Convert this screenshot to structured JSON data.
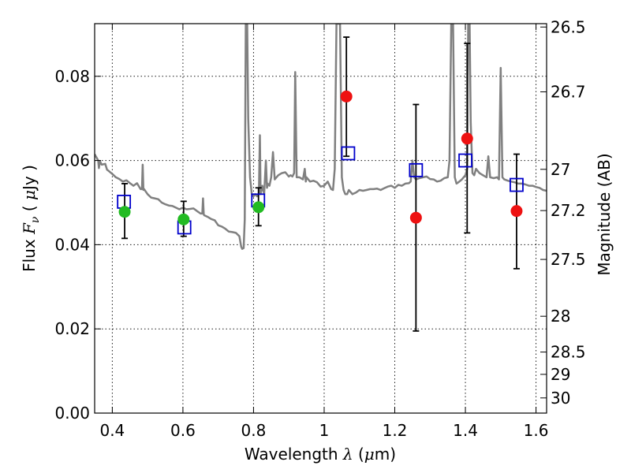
{
  "chart_data": {
    "type": "scatter",
    "xlabel": {
      "prefix": "Wavelength ",
      "symbol": "λ",
      "mid": " (",
      "mu": "μ",
      "suffix": "m)"
    },
    "ylabel": {
      "prefix": "Flux ",
      "symbol": "F",
      "sub": "ν",
      "mid": " ( ",
      "mu": "μ",
      "suffix": "Jy )"
    },
    "y2label": "Magnitude (AB)",
    "xlim": [
      0.35,
      1.63
    ],
    "ylim": [
      0.0,
      0.0925
    ],
    "x_ticks": [
      0.4,
      0.6,
      0.8,
      1.0,
      1.2,
      1.4,
      1.6
    ],
    "x_tick_labels": [
      "0.4",
      "0.6",
      "0.8",
      "1",
      "1.2",
      "1.4",
      "1.6"
    ],
    "y_ticks": [
      0.0,
      0.02,
      0.04,
      0.06,
      0.08
    ],
    "y_tick_labels": [
      "0.00",
      "0.02",
      "0.04",
      "0.06",
      "0.08"
    ],
    "y2_ticks": [
      {
        "label": "26.5",
        "flux": 0.0917
      },
      {
        "label": "26.7",
        "flux": 0.0763
      },
      {
        "label": "27",
        "flux": 0.0579
      },
      {
        "label": "27.2",
        "flux": 0.0481
      },
      {
        "label": "27.5",
        "flux": 0.0365
      },
      {
        "label": "28",
        "flux": 0.023
      },
      {
        "label": "28.5",
        "flux": 0.0145
      },
      {
        "label": "29",
        "flux": 0.0092
      },
      {
        "label": "30",
        "flux": 0.0036
      }
    ],
    "grid": true,
    "colors": {
      "spectrum": "#808080",
      "model": "#0000cc",
      "green": "#22bb22",
      "red": "#ee1111",
      "errorbar": "#000000"
    },
    "series": [
      {
        "kind": "line",
        "points": [
          [
            0.35,
            0.0615
          ],
          [
            0.36,
            0.06
          ],
          [
            0.362,
            0.0582
          ],
          [
            0.365,
            0.0598
          ],
          [
            0.37,
            0.059
          ],
          [
            0.38,
            0.0592
          ],
          [
            0.385,
            0.0578
          ],
          [
            0.39,
            0.0575
          ],
          [
            0.4,
            0.0568
          ],
          [
            0.41,
            0.056
          ],
          [
            0.42,
            0.0556
          ],
          [
            0.43,
            0.055
          ],
          [
            0.44,
            0.0553
          ],
          [
            0.45,
            0.0546
          ],
          [
            0.46,
            0.054
          ],
          [
            0.47,
            0.0546
          ],
          [
            0.48,
            0.0532
          ],
          [
            0.484,
            0.0532
          ],
          [
            0.486,
            0.059
          ],
          [
            0.488,
            0.053
          ],
          [
            0.49,
            0.0532
          ],
          [
            0.5,
            0.052
          ],
          [
            0.51,
            0.0512
          ],
          [
            0.52,
            0.051
          ],
          [
            0.53,
            0.0508
          ],
          [
            0.54,
            0.05
          ],
          [
            0.55,
            0.0496
          ],
          [
            0.56,
            0.0493
          ],
          [
            0.57,
            0.0492
          ],
          [
            0.58,
            0.0488
          ],
          [
            0.59,
            0.0484
          ],
          [
            0.6,
            0.0488
          ],
          [
            0.61,
            0.0484
          ],
          [
            0.62,
            0.0485
          ],
          [
            0.63,
            0.0486
          ],
          [
            0.64,
            0.048
          ],
          [
            0.65,
            0.0474
          ],
          [
            0.655,
            0.0474
          ],
          [
            0.657,
            0.051
          ],
          [
            0.659,
            0.0472
          ],
          [
            0.66,
            0.047
          ],
          [
            0.67,
            0.0466
          ],
          [
            0.68,
            0.0461
          ],
          [
            0.69,
            0.0458
          ],
          [
            0.7,
            0.0446
          ],
          [
            0.71,
            0.0443
          ],
          [
            0.72,
            0.0438
          ],
          [
            0.73,
            0.0431
          ],
          [
            0.74,
            0.043
          ],
          [
            0.75,
            0.0428
          ],
          [
            0.76,
            0.042
          ],
          [
            0.765,
            0.0395
          ],
          [
            0.768,
            0.039
          ],
          [
            0.772,
            0.0392
          ],
          [
            0.775,
            0.046
          ],
          [
            0.778,
            0.0925
          ],
          [
            0.782,
            0.0925
          ],
          [
            0.785,
            0.07
          ],
          [
            0.79,
            0.056
          ],
          [
            0.795,
            0.052
          ],
          [
            0.8,
            0.0515
          ],
          [
            0.805,
            0.052
          ],
          [
            0.81,
            0.0515
          ],
          [
            0.815,
            0.052
          ],
          [
            0.818,
            0.066
          ],
          [
            0.82,
            0.052
          ],
          [
            0.825,
            0.054
          ],
          [
            0.83,
            0.052
          ],
          [
            0.835,
            0.06
          ],
          [
            0.838,
            0.0535
          ],
          [
            0.84,
            0.0545
          ],
          [
            0.845,
            0.054
          ],
          [
            0.85,
            0.056
          ],
          [
            0.855,
            0.062
          ],
          [
            0.86,
            0.0555
          ],
          [
            0.865,
            0.056
          ],
          [
            0.87,
            0.0565
          ],
          [
            0.88,
            0.057
          ],
          [
            0.89,
            0.0572
          ],
          [
            0.9,
            0.0562
          ],
          [
            0.905,
            0.0565
          ],
          [
            0.91,
            0.0562
          ],
          [
            0.915,
            0.057
          ],
          [
            0.918,
            0.081
          ],
          [
            0.922,
            0.056
          ],
          [
            0.93,
            0.056
          ],
          [
            0.94,
            0.0555
          ],
          [
            0.945,
            0.058
          ],
          [
            0.948,
            0.055
          ],
          [
            0.95,
            0.056
          ],
          [
            0.96,
            0.055
          ],
          [
            0.97,
            0.0552
          ],
          [
            0.98,
            0.0548
          ],
          [
            0.99,
            0.0538
          ],
          [
            1.0,
            0.054
          ],
          [
            1.01,
            0.055
          ],
          [
            1.02,
            0.0532
          ],
          [
            1.025,
            0.053
          ],
          [
            1.03,
            0.058
          ],
          [
            1.035,
            0.0925
          ],
          [
            1.045,
            0.0925
          ],
          [
            1.05,
            0.056
          ],
          [
            1.055,
            0.053
          ],
          [
            1.06,
            0.052
          ],
          [
            1.065,
            0.052
          ],
          [
            1.07,
            0.053
          ],
          [
            1.08,
            0.052
          ],
          [
            1.09,
            0.0524
          ],
          [
            1.1,
            0.053
          ],
          [
            1.11,
            0.0528
          ],
          [
            1.12,
            0.053
          ],
          [
            1.13,
            0.0532
          ],
          [
            1.14,
            0.0532
          ],
          [
            1.15,
            0.0533
          ],
          [
            1.16,
            0.053
          ],
          [
            1.17,
            0.0534
          ],
          [
            1.18,
            0.0538
          ],
          [
            1.19,
            0.054
          ],
          [
            1.2,
            0.0535
          ],
          [
            1.21,
            0.0542
          ],
          [
            1.22,
            0.054
          ],
          [
            1.23,
            0.0545
          ],
          [
            1.24,
            0.0546
          ],
          [
            1.245,
            0.055
          ],
          [
            1.25,
            0.06
          ],
          [
            1.255,
            0.056
          ],
          [
            1.26,
            0.0555
          ],
          [
            1.27,
            0.0558
          ],
          [
            1.28,
            0.056
          ],
          [
            1.29,
            0.0562
          ],
          [
            1.3,
            0.0556
          ],
          [
            1.31,
            0.0555
          ],
          [
            1.32,
            0.055
          ],
          [
            1.33,
            0.0552
          ],
          [
            1.34,
            0.0558
          ],
          [
            1.35,
            0.056
          ],
          [
            1.355,
            0.06
          ],
          [
            1.36,
            0.0925
          ],
          [
            1.365,
            0.0925
          ],
          [
            1.37,
            0.056
          ],
          [
            1.375,
            0.0545
          ],
          [
            1.38,
            0.0548
          ],
          [
            1.39,
            0.0555
          ],
          [
            1.4,
            0.0565
          ],
          [
            1.405,
            0.058
          ],
          [
            1.408,
            0.0925
          ],
          [
            1.412,
            0.0925
          ],
          [
            1.415,
            0.069
          ],
          [
            1.42,
            0.057
          ],
          [
            1.425,
            0.0565
          ],
          [
            1.43,
            0.058
          ],
          [
            1.435,
            0.0575
          ],
          [
            1.44,
            0.057
          ],
          [
            1.45,
            0.0565
          ],
          [
            1.46,
            0.056
          ],
          [
            1.465,
            0.061
          ],
          [
            1.47,
            0.056
          ],
          [
            1.48,
            0.0558
          ],
          [
            1.49,
            0.056
          ],
          [
            1.495,
            0.0555
          ],
          [
            1.5,
            0.082
          ],
          [
            1.505,
            0.056
          ],
          [
            1.51,
            0.0555
          ],
          [
            1.52,
            0.0552
          ],
          [
            1.53,
            0.055
          ],
          [
            1.54,
            0.0548
          ],
          [
            1.55,
            0.0545
          ],
          [
            1.56,
            0.0545
          ],
          [
            1.57,
            0.0543
          ],
          [
            1.58,
            0.054
          ],
          [
            1.59,
            0.054
          ],
          [
            1.6,
            0.0537
          ],
          [
            1.61,
            0.0535
          ],
          [
            1.62,
            0.053
          ],
          [
            1.63,
            0.0528
          ]
        ]
      },
      {
        "kind": "open-square",
        "points": [
          [
            0.433,
            0.0502
          ],
          [
            0.604,
            0.0441
          ],
          [
            0.813,
            0.0505
          ],
          [
            1.068,
            0.0617
          ],
          [
            1.26,
            0.0577
          ],
          [
            1.4,
            0.06
          ],
          [
            1.545,
            0.0542
          ]
        ]
      },
      {
        "kind": "filled-circle",
        "color": "green",
        "points": [
          [
            0.435,
            0.0478
          ],
          [
            0.602,
            0.046
          ],
          [
            0.814,
            0.0489
          ]
        ]
      },
      {
        "kind": "filled-circle",
        "color": "red",
        "points": [
          [
            1.063,
            0.0752
          ],
          [
            1.26,
            0.0464
          ],
          [
            1.405,
            0.0652
          ],
          [
            1.545,
            0.048
          ]
        ]
      },
      {
        "kind": "errorbar",
        "bars": [
          {
            "x": 0.435,
            "low": 0.0415,
            "high": 0.0545
          },
          {
            "x": 0.602,
            "low": 0.042,
            "high": 0.0503
          },
          {
            "x": 0.814,
            "low": 0.0445,
            "high": 0.0535
          },
          {
            "x": 1.063,
            "low": 0.061,
            "high": 0.0893
          },
          {
            "x": 1.26,
            "low": 0.0195,
            "high": 0.0733
          },
          {
            "x": 1.405,
            "low": 0.0428,
            "high": 0.0878
          },
          {
            "x": 1.545,
            "low": 0.0343,
            "high": 0.0615
          }
        ]
      }
    ]
  }
}
